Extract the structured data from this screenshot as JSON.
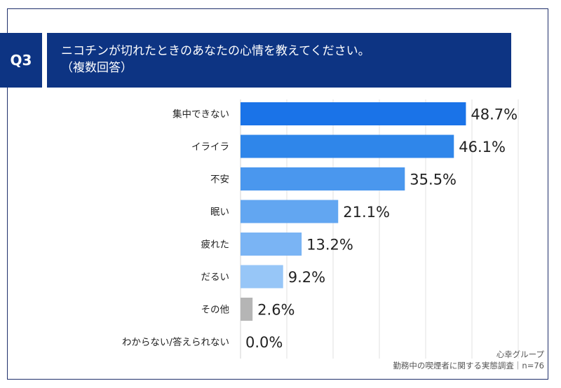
{
  "header": {
    "badge": "Q3",
    "question_line1": "ニコチンが切れたときのあなたの心情を教えてください。",
    "question_line2": "（複数回答）"
  },
  "source": {
    "org": "心幸グループ",
    "survey": "勤務中の喫煙者に関する実態調査｜n=76"
  },
  "colors": {
    "navy": "#0d3483",
    "bar_gradient": [
      "#1a73e8",
      "#2f86ea",
      "#4a97ee",
      "#62a6f1",
      "#7ab4f4",
      "#97c6f7"
    ],
    "other_gray": "#b5b5b5"
  },
  "chart_data": {
    "type": "bar",
    "orientation": "horizontal",
    "categories": [
      "集中できない",
      "イライラ",
      "不安",
      "眠い",
      "疲れた",
      "だるい",
      "その他",
      "わからない/答えられない"
    ],
    "values": [
      48.7,
      46.1,
      35.5,
      21.1,
      13.2,
      9.2,
      2.6,
      0.0
    ],
    "value_labels": [
      "48.7%",
      "46.1%",
      "35.5%",
      "21.1%",
      "13.2%",
      "9.2%",
      "2.6%",
      "0.0%"
    ],
    "xlim": [
      0,
      60
    ],
    "grid": true
  }
}
